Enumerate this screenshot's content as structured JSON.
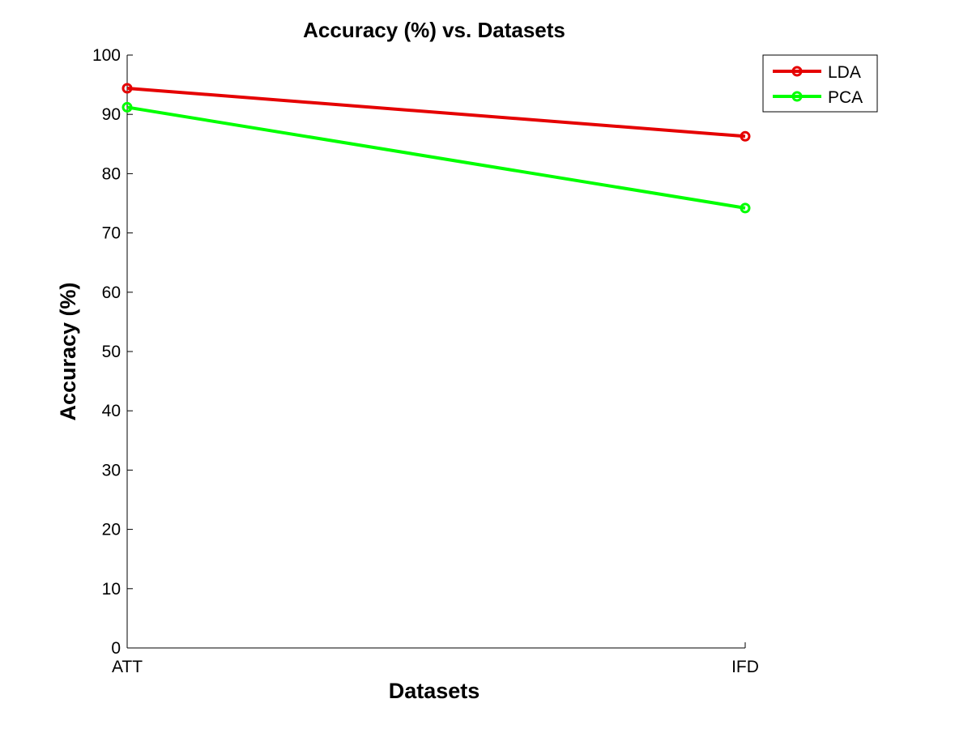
{
  "chart_data": {
    "type": "line",
    "title": "Accuracy (%) vs. Datasets",
    "xlabel": "Datasets",
    "ylabel": "Accuracy (%)",
    "categories": [
      "ATT",
      "IFD"
    ],
    "ylim": [
      0,
      100
    ],
    "yticks": [
      0,
      10,
      20,
      30,
      40,
      50,
      60,
      70,
      80,
      90,
      100
    ],
    "grid": false,
    "legend_position": "top-right",
    "series": [
      {
        "name": "LDA",
        "values": [
          94.4,
          86.3
        ],
        "color": "#e50000",
        "marker": "circle"
      },
      {
        "name": "PCA",
        "values": [
          91.2,
          74.2
        ],
        "color": "#00ff00",
        "marker": "circle"
      }
    ]
  }
}
